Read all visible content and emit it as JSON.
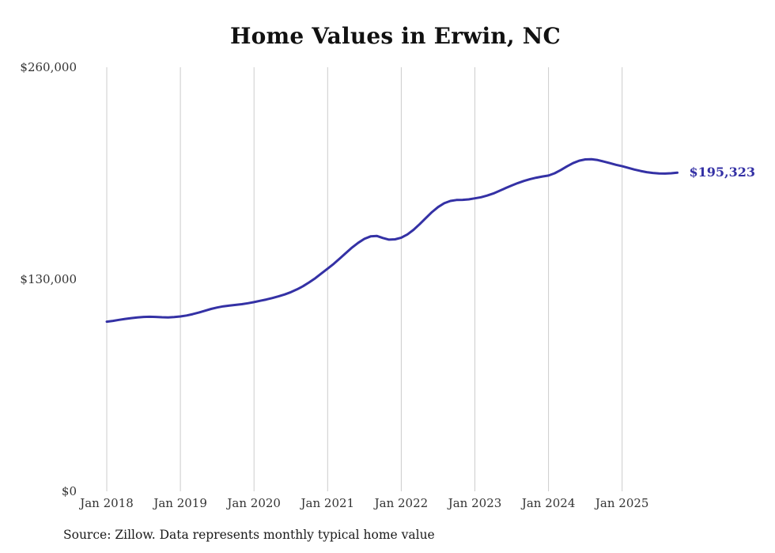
{
  "chart_data": {
    "type": "line",
    "title": "Home Values in Erwin, NC",
    "series_name": "Typical home value",
    "x": [
      "2018-01",
      "2018-02",
      "2018-03",
      "2018-04",
      "2018-05",
      "2018-06",
      "2018-07",
      "2018-08",
      "2018-09",
      "2018-10",
      "2018-11",
      "2018-12",
      "2019-01",
      "2019-02",
      "2019-03",
      "2019-04",
      "2019-05",
      "2019-06",
      "2019-07",
      "2019-08",
      "2019-09",
      "2019-10",
      "2019-11",
      "2019-12",
      "2020-01",
      "2020-02",
      "2020-03",
      "2020-04",
      "2020-05",
      "2020-06",
      "2020-07",
      "2020-08",
      "2020-09",
      "2020-10",
      "2020-11",
      "2020-12",
      "2021-01",
      "2021-02",
      "2021-03",
      "2021-04",
      "2021-05",
      "2021-06",
      "2021-07",
      "2021-08",
      "2021-09",
      "2021-10",
      "2021-11",
      "2021-12",
      "2022-01",
      "2022-02",
      "2022-03",
      "2022-04",
      "2022-05",
      "2022-06",
      "2022-07",
      "2022-08",
      "2022-09",
      "2022-10",
      "2022-11",
      "2022-12",
      "2023-01",
      "2023-02",
      "2023-03",
      "2023-04",
      "2023-05",
      "2023-06",
      "2023-07",
      "2023-08",
      "2023-09",
      "2023-10",
      "2023-11",
      "2023-12",
      "2024-01",
      "2024-02",
      "2024-03",
      "2024-04",
      "2024-05",
      "2024-06",
      "2024-07",
      "2024-08",
      "2024-09",
      "2024-10",
      "2024-11",
      "2024-12",
      "2025-01",
      "2025-02",
      "2025-03",
      "2025-04",
      "2025-05",
      "2025-06",
      "2025-07",
      "2025-08",
      "2025-09",
      "2025-10"
    ],
    "values": [
      104000,
      104500,
      105100,
      105700,
      106200,
      106600,
      106900,
      107000,
      106900,
      106700,
      106600,
      106800,
      107200,
      107800,
      108600,
      109600,
      110700,
      111800,
      112700,
      113400,
      113900,
      114300,
      114700,
      115300,
      116000,
      116800,
      117600,
      118500,
      119500,
      120700,
      122100,
      123800,
      125800,
      128100,
      130700,
      133600,
      136500,
      139500,
      142800,
      146200,
      149500,
      152400,
      154800,
      156300,
      156600,
      155300,
      154300,
      154500,
      155500,
      157500,
      160300,
      163800,
      167500,
      171200,
      174300,
      176600,
      178000,
      178600,
      178700,
      179000,
      179600,
      180300,
      181300,
      182600,
      184200,
      185900,
      187500,
      189000,
      190300,
      191400,
      192300,
      193000,
      193600,
      195000,
      197000,
      199200,
      201200,
      202700,
      203500,
      203600,
      203100,
      202200,
      201200,
      200200,
      199300,
      198300,
      197300,
      196400,
      195700,
      195200,
      194900,
      194800,
      195000,
      195323
    ],
    "xticks": [
      "Jan 2018",
      "Jan 2019",
      "Jan 2020",
      "Jan 2021",
      "Jan 2022",
      "Jan 2023",
      "Jan 2024",
      "Jan 2025"
    ],
    "yticks": [
      {
        "value": 0,
        "label": "$0"
      },
      {
        "value": 130000,
        "label": "$130,000"
      },
      {
        "value": 260000,
        "label": "$260,000"
      }
    ],
    "ylim": [
      0,
      260000
    ],
    "grid": "vertical-only",
    "legend": "none",
    "line_color": "#3431a5",
    "gridline_color": "#cccccc",
    "latest_value": 195323,
    "end_label": "$195,323",
    "source": "Source: Zillow. Data represents monthly typical home value"
  }
}
